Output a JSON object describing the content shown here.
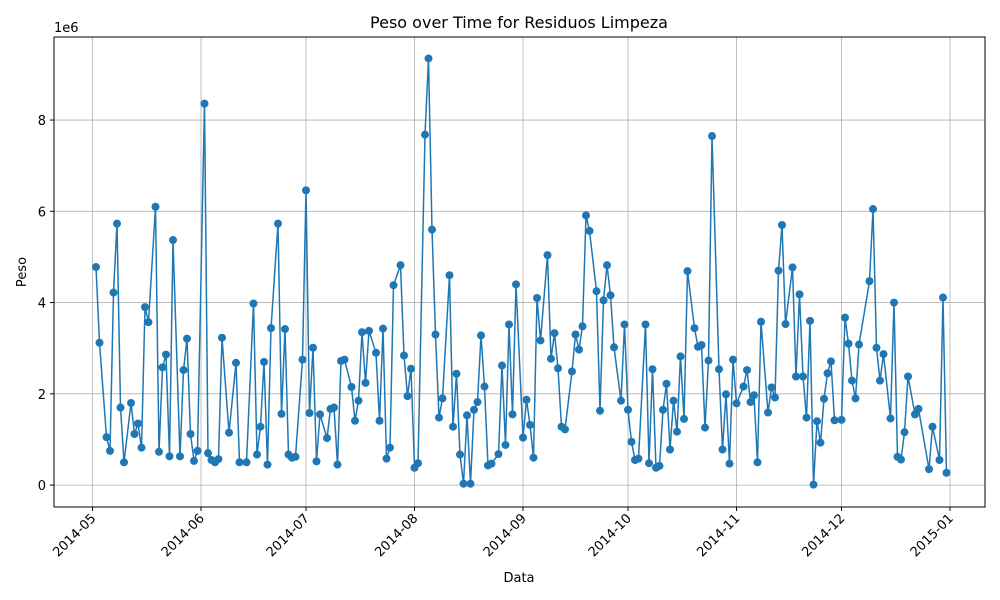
{
  "chart_data": {
    "type": "line",
    "title": "Peso over Time for Residuos Limpeza",
    "x_label": "Data",
    "y_label": "Peso",
    "y_offset_label": "1e6",
    "color": "#1f77b4",
    "grid": true,
    "markers": true,
    "x": [
      "2014-05-02",
      "2014-05-03",
      "2014-05-05",
      "2014-05-06",
      "2014-05-07",
      "2014-05-08",
      "2014-05-09",
      "2014-05-10",
      "2014-05-12",
      "2014-05-13",
      "2014-05-14",
      "2014-05-15",
      "2014-05-16",
      "2014-05-17",
      "2014-05-19",
      "2014-05-20",
      "2014-05-21",
      "2014-05-22",
      "2014-05-23",
      "2014-05-24",
      "2014-05-26",
      "2014-05-27",
      "2014-05-28",
      "2014-05-29",
      "2014-05-30",
      "2014-05-31",
      "2014-06-02",
      "2014-06-03",
      "2014-06-04",
      "2014-06-05",
      "2014-06-06",
      "2014-06-07",
      "2014-06-09",
      "2014-06-11",
      "2014-06-12",
      "2014-06-14",
      "2014-06-16",
      "2014-06-17",
      "2014-06-18",
      "2014-06-19",
      "2014-06-20",
      "2014-06-21",
      "2014-06-23",
      "2014-06-24",
      "2014-06-25",
      "2014-06-26",
      "2014-06-27",
      "2014-06-28",
      "2014-06-30",
      "2014-07-01",
      "2014-07-02",
      "2014-07-03",
      "2014-07-04",
      "2014-07-05",
      "2014-07-07",
      "2014-07-08",
      "2014-07-09",
      "2014-07-10",
      "2014-07-11",
      "2014-07-12",
      "2014-07-14",
      "2014-07-15",
      "2014-07-16",
      "2014-07-17",
      "2014-07-18",
      "2014-07-19",
      "2014-07-21",
      "2014-07-22",
      "2014-07-23",
      "2014-07-24",
      "2014-07-25",
      "2014-07-26",
      "2014-07-28",
      "2014-07-29",
      "2014-07-30",
      "2014-07-31",
      "2014-08-01",
      "2014-08-02",
      "2014-08-04",
      "2014-08-05",
      "2014-08-06",
      "2014-08-07",
      "2014-08-08",
      "2014-08-09",
      "2014-08-11",
      "2014-08-12",
      "2014-08-13",
      "2014-08-14",
      "2014-08-15",
      "2014-08-16",
      "2014-08-17",
      "2014-08-18",
      "2014-08-19",
      "2014-08-20",
      "2014-08-21",
      "2014-08-22",
      "2014-08-23",
      "2014-08-25",
      "2014-08-26",
      "2014-08-27",
      "2014-08-28",
      "2014-08-29",
      "2014-08-30",
      "2014-09-01",
      "2014-09-02",
      "2014-09-03",
      "2014-09-04",
      "2014-09-05",
      "2014-09-06",
      "2014-09-08",
      "2014-09-09",
      "2014-09-10",
      "2014-09-11",
      "2014-09-12",
      "2014-09-13",
      "2014-09-15",
      "2014-09-16",
      "2014-09-17",
      "2014-09-18",
      "2014-09-19",
      "2014-09-20",
      "2014-09-22",
      "2014-09-23",
      "2014-09-24",
      "2014-09-25",
      "2014-09-26",
      "2014-09-27",
      "2014-09-29",
      "2014-09-30",
      "2014-10-01",
      "2014-10-02",
      "2014-10-03",
      "2014-10-04",
      "2014-10-06",
      "2014-10-07",
      "2014-10-08",
      "2014-10-09",
      "2014-10-10",
      "2014-10-11",
      "2014-10-12",
      "2014-10-13",
      "2014-10-14",
      "2014-10-15",
      "2014-10-16",
      "2014-10-17",
      "2014-10-18",
      "2014-10-20",
      "2014-10-21",
      "2014-10-22",
      "2014-10-23",
      "2014-10-24",
      "2014-10-25",
      "2014-10-27",
      "2014-10-28",
      "2014-10-29",
      "2014-10-30",
      "2014-10-31",
      "2014-11-01",
      "2014-11-03",
      "2014-11-04",
      "2014-11-05",
      "2014-11-06",
      "2014-11-07",
      "2014-11-08",
      "2014-11-10",
      "2014-11-11",
      "2014-11-12",
      "2014-11-13",
      "2014-11-14",
      "2014-11-15",
      "2014-11-17",
      "2014-11-18",
      "2014-11-19",
      "2014-11-20",
      "2014-11-21",
      "2014-11-22",
      "2014-11-23",
      "2014-11-24",
      "2014-11-25",
      "2014-11-26",
      "2014-11-27",
      "2014-11-28",
      "2014-11-29",
      "2014-12-01",
      "2014-12-02",
      "2014-12-03",
      "2014-12-04",
      "2014-12-05",
      "2014-12-06",
      "2014-12-09",
      "2014-12-10",
      "2014-12-11",
      "2014-12-12",
      "2014-12-13",
      "2014-12-15",
      "2014-12-16",
      "2014-12-17",
      "2014-12-18",
      "2014-12-19",
      "2014-12-20",
      "2014-12-22",
      "2014-12-23",
      "2014-12-26",
      "2014-12-27",
      "2014-12-29",
      "2014-12-30",
      "2014-12-31"
    ],
    "values": [
      4.78,
      3.12,
      1.05,
      0.75,
      4.22,
      5.73,
      1.7,
      0.5,
      1.8,
      1.12,
      1.35,
      0.82,
      3.9,
      3.57,
      6.1,
      0.73,
      2.58,
      2.86,
      0.63,
      5.37,
      0.63,
      2.52,
      3.21,
      1.12,
      0.53,
      0.75,
      8.36,
      0.7,
      0.55,
      0.5,
      0.57,
      3.23,
      1.15,
      2.68,
      0.5,
      0.5,
      3.98,
      0.67,
      1.28,
      2.7,
      0.45,
      3.44,
      5.73,
      1.56,
      3.42,
      0.67,
      0.6,
      0.62,
      2.75,
      6.46,
      1.58,
      3.01,
      0.52,
      1.55,
      1.03,
      1.67,
      1.7,
      0.45,
      2.72,
      2.75,
      2.15,
      1.41,
      1.85,
      3.35,
      2.24,
      3.38,
      2.9,
      1.41,
      3.43,
      0.58,
      0.82,
      4.38,
      4.82,
      2.84,
      1.95,
      2.55,
      0.38,
      0.48,
      7.68,
      9.35,
      5.6,
      3.3,
      1.48,
      1.9,
      4.6,
      1.28,
      2.44,
      0.67,
      0.03,
      1.53,
      0.03,
      1.65,
      1.82,
      3.28,
      2.16,
      0.43,
      0.47,
      0.68,
      2.62,
      0.88,
      3.52,
      1.55,
      4.4,
      1.04,
      1.87,
      1.32,
      0.6,
      4.1,
      3.17,
      5.04,
      2.77,
      3.33,
      2.56,
      1.28,
      1.22,
      2.49,
      3.3,
      2.97,
      3.48,
      5.91,
      5.57,
      4.25,
      1.63,
      4.05,
      4.82,
      4.16,
      3.02,
      1.85,
      3.52,
      1.65,
      0.95,
      0.55,
      0.58,
      3.52,
      0.48,
      2.54,
      0.38,
      0.42,
      1.65,
      2.22,
      0.78,
      1.85,
      1.17,
      2.82,
      1.45,
      4.69,
      3.44,
      3.03,
      3.07,
      1.26,
      2.73,
      7.65,
      2.54,
      0.78,
      1.99,
      0.47,
      2.75,
      1.79,
      2.16,
      2.52,
      1.82,
      1.97,
      0.5,
      3.58,
      1.59,
      2.14,
      1.92,
      4.7,
      5.7,
      3.53,
      4.77,
      2.38,
      4.18,
      2.38,
      1.48,
      3.6,
      0.01,
      1.4,
      0.93,
      1.89,
      2.45,
      2.71,
      1.42,
      1.43,
      3.67,
      3.1,
      2.29,
      1.9,
      3.08,
      4.47,
      6.05,
      3.01,
      2.29,
      2.87,
      1.46,
      4.0,
      0.62,
      0.56,
      1.16,
      2.38,
      1.55,
      1.67,
      0.35,
      1.28,
      0.55,
      4.11,
      0.27
    ],
    "xlim": [
      "2014-04-20",
      "2015-01-11"
    ],
    "xticks": [
      "2014-05",
      "2014-06",
      "2014-07",
      "2014-08",
      "2014-09",
      "2014-10",
      "2014-11",
      "2014-12",
      "2015-01"
    ],
    "ylim": [
      -0.48,
      9.82
    ],
    "yticks": [
      0,
      2,
      4,
      6,
      8
    ]
  }
}
